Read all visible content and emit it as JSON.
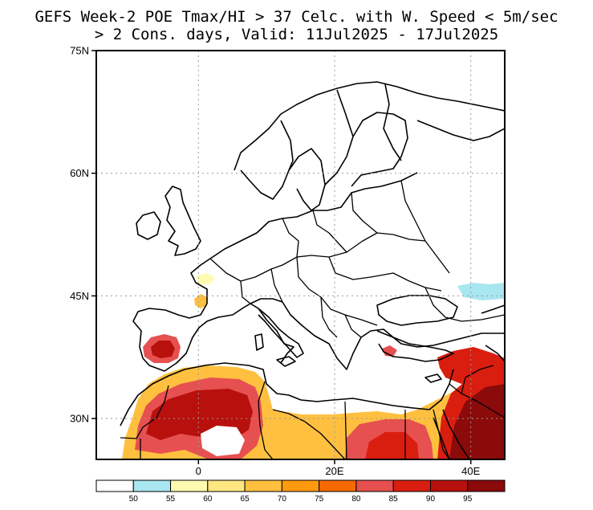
{
  "title": {
    "line1": "GEFS Week-2 POE Tmax/HI > 37 Celc. with W. Speed < 5m/sec",
    "line2": "> 2 Cons. days, Valid: 11Jul2025 - 17Jul2025"
  },
  "map": {
    "lat_range": [
      25,
      75
    ],
    "lon_range": [
      -15,
      45
    ],
    "lat_ticks": [
      {
        "value": 75,
        "label": "75N"
      },
      {
        "value": 60,
        "label": "60N"
      },
      {
        "value": 45,
        "label": "45N"
      },
      {
        "value": 30,
        "label": "30N"
      }
    ],
    "lon_ticks": [
      {
        "value": 0,
        "label": "0"
      },
      {
        "value": 20,
        "label": "20E"
      },
      {
        "value": 40,
        "label": "40E"
      }
    ],
    "grid_lat": [
      60,
      45,
      30
    ],
    "grid_lon": [
      0,
      20,
      40
    ]
  },
  "colorbar": {
    "labels": [
      "50",
      "55",
      "60",
      "65",
      "70",
      "75",
      "80",
      "85",
      "90",
      "95"
    ],
    "colors": [
      "#ffffff",
      "#a8e6f0",
      "#fffbb0",
      "#ffe680",
      "#ffc040",
      "#ff9a10",
      "#f56a00",
      "#e65050",
      "#d91e10",
      "#b8100c",
      "#8b0a0a"
    ]
  }
}
